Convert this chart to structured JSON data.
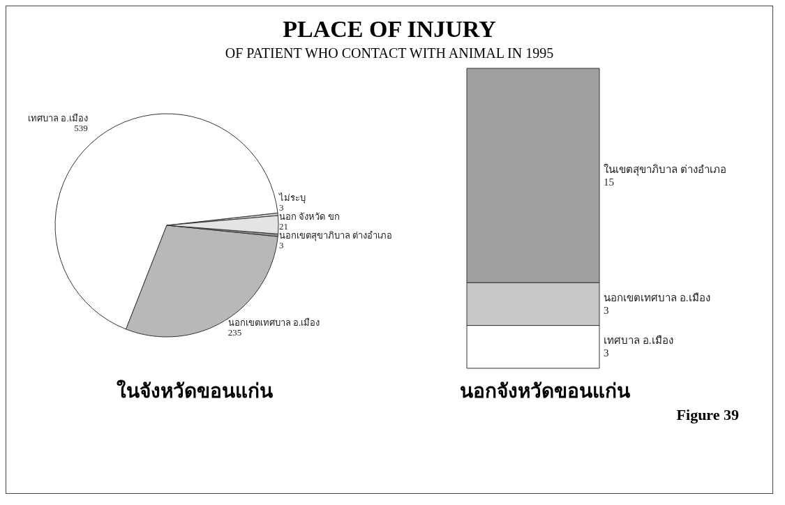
{
  "chart_data": [
    {
      "type": "pie",
      "title": "PLACE OF INJURY",
      "subtitle": "OF PATIENT WHO CONTACT WITH ANIMAL  IN 1995",
      "categories": [
        "ไม่ระบุ",
        "เทศบาล อ.เมือง",
        "นอกเขตเทศบาล อ.เมือง",
        "นอกเขตสุขาภิบาล ต่างอำเภอ",
        "นอก จังหวัด ขก"
      ],
      "values": [
        3,
        539,
        235,
        3,
        21
      ],
      "colors": [
        "#d0d0d0",
        "#ffffff",
        "#b8b8b8",
        "#909090",
        "#e4e4e4"
      ],
      "data_labels": true,
      "annotations": [
        "ในจังหวัดขอนแก่น"
      ]
    },
    {
      "type": "bar",
      "stacked": true,
      "categories": [
        null
      ],
      "series": [
        {
          "name": "เทศบาล อ.เมือง",
          "color": "#ffffff",
          "values": [
            3
          ]
        },
        {
          "name": "นอกเขตเทศบาล อ.เมือง",
          "color": "#c8c8c8",
          "values": [
            3
          ]
        },
        {
          "name": "ในเขตสุขาภิบาล ต่างอำเภอ",
          "color": "#a0a0a0",
          "values": [
            15
          ]
        }
      ],
      "data_labels": true,
      "annotations": [
        "นอกจังหวัดขอนแก่น",
        "Figure 39"
      ]
    }
  ]
}
